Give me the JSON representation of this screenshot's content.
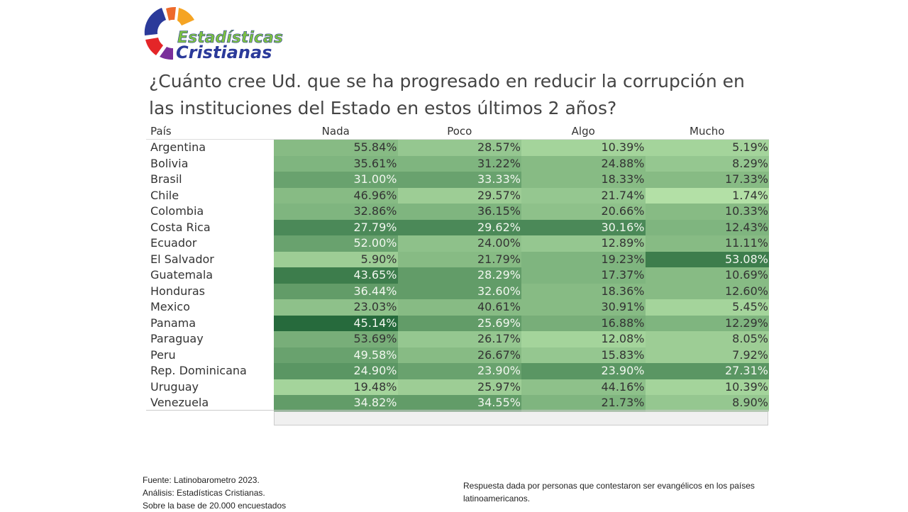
{
  "logo": {
    "line1": "Estadísticas",
    "line2": "Cristianas"
  },
  "chart_data": {
    "type": "heatmap",
    "title": "¿Cuánto cree Ud. que se ha progresado en reducir la corrupción en las instituciones del Estado en estos últimos 2 años?",
    "row_header": "País",
    "columns": [
      "Nada",
      "Poco",
      "Algo",
      "Mucho"
    ],
    "rows": [
      {
        "country": "Argentina",
        "values": [
          "55.84%",
          "28.57%",
          "10.39%",
          "5.19%"
        ],
        "shade": [
          0.3,
          0.2,
          0.1,
          0.1
        ]
      },
      {
        "country": "Bolivia",
        "values": [
          "35.61%",
          "31.22%",
          "24.88%",
          "8.29%"
        ],
        "shade": [
          0.35,
          0.35,
          0.3,
          0.2
        ]
      },
      {
        "country": "Brasil",
        "values": [
          "31.00%",
          "33.33%",
          "18.33%",
          "17.33%"
        ],
        "shade": [
          0.5,
          0.5,
          0.3,
          0.3
        ]
      },
      {
        "country": "Chile",
        "values": [
          "46.96%",
          "29.57%",
          "21.74%",
          "1.74%"
        ],
        "shade": [
          0.3,
          0.15,
          0.2,
          0.0
        ]
      },
      {
        "country": "Colombia",
        "values": [
          "32.86%",
          "36.15%",
          "20.66%",
          "10.33%"
        ],
        "shade": [
          0.35,
          0.35,
          0.25,
          0.3
        ]
      },
      {
        "country": "Costa Rica",
        "values": [
          "27.79%",
          "29.62%",
          "30.16%",
          "12.43%"
        ],
        "shade": [
          0.7,
          0.7,
          0.7,
          0.35
        ]
      },
      {
        "country": "Ecuador",
        "values": [
          "52.00%",
          "24.00%",
          "12.89%",
          "11.11%"
        ],
        "shade": [
          0.5,
          0.25,
          0.2,
          0.3
        ]
      },
      {
        "country": "El Salvador",
        "values": [
          "5.90%",
          "21.79%",
          "19.23%",
          "53.08%"
        ],
        "shade": [
          0.15,
          0.3,
          0.35,
          0.8
        ]
      },
      {
        "country": "Guatemala",
        "values": [
          "43.65%",
          "28.29%",
          "17.37%",
          "10.69%"
        ],
        "shade": [
          0.8,
          0.55,
          0.35,
          0.3
        ]
      },
      {
        "country": "Honduras",
        "values": [
          "36.44%",
          "32.60%",
          "18.36%",
          "12.60%"
        ],
        "shade": [
          0.55,
          0.55,
          0.3,
          0.3
        ]
      },
      {
        "country": "Mexico",
        "values": [
          "23.03%",
          "40.61%",
          "30.91%",
          "5.45%"
        ],
        "shade": [
          0.25,
          0.3,
          0.3,
          0.1
        ]
      },
      {
        "country": "Panama",
        "values": [
          "45.14%",
          "25.69%",
          "16.88%",
          "12.29%"
        ],
        "shade": [
          0.95,
          0.55,
          0.4,
          0.35
        ]
      },
      {
        "country": "Paraguay",
        "values": [
          "53.69%",
          "26.17%",
          "12.08%",
          "8.05%"
        ],
        "shade": [
          0.4,
          0.2,
          0.1,
          0.15
        ]
      },
      {
        "country": "Peru",
        "values": [
          "49.58%",
          "26.67%",
          "15.83%",
          "7.92%"
        ],
        "shade": [
          0.5,
          0.3,
          0.2,
          0.15
        ]
      },
      {
        "country": "Rep. Dominicana",
        "values": [
          "24.90%",
          "23.90%",
          "23.90%",
          "27.31%"
        ],
        "shade": [
          0.6,
          0.5,
          0.6,
          0.6
        ]
      },
      {
        "country": "Uruguay",
        "values": [
          "19.48%",
          "25.97%",
          "44.16%",
          "10.39%"
        ],
        "shade": [
          0.1,
          0.15,
          0.25,
          0.1
        ]
      },
      {
        "country": "Venezuela",
        "values": [
          "34.82%",
          "34.55%",
          "21.73%",
          "8.90%"
        ],
        "shade": [
          0.55,
          0.55,
          0.35,
          0.2
        ]
      }
    ],
    "color_light": "#b3e0a6",
    "color_dark": "#1f6436"
  },
  "footer": {
    "source": "Fuente: Latinobarometro 2023.",
    "analysis": "Análisis: Estadísticas Cristianas.",
    "base": "Sobre la base de 20.000 encuestados",
    "note": "Respuesta dada por personas que contestaron ser evangélicos en los países latinoamericanos."
  }
}
